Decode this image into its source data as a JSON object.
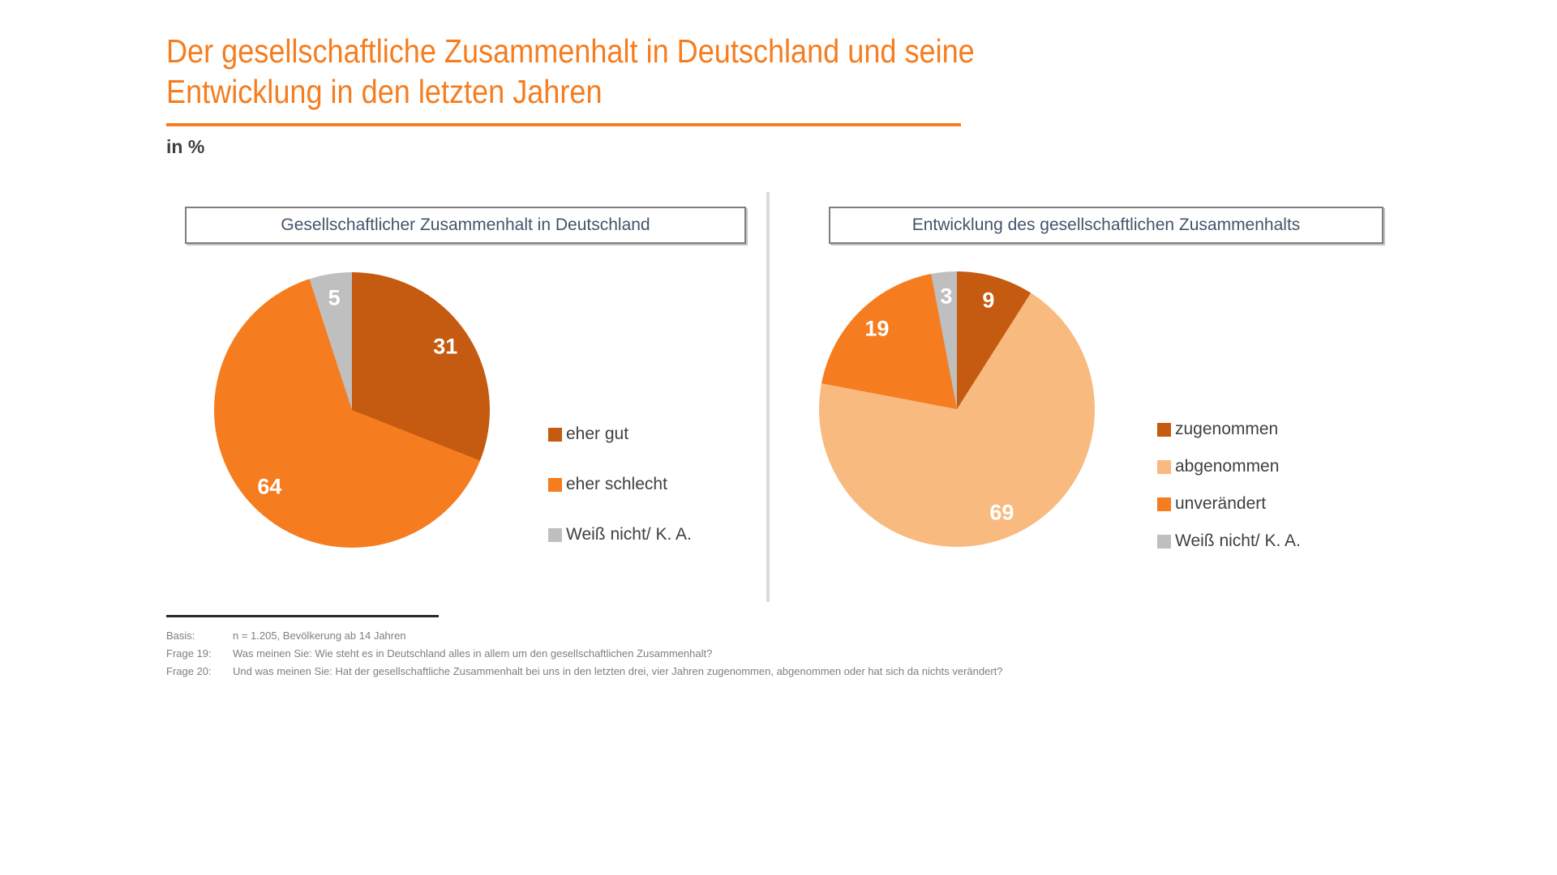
{
  "accent_color": "#F57D1F",
  "title": {
    "line1": "Der gesellschaftliche Zusammenhalt in Deutschland und seine",
    "line2": "Entwicklung in den letzten Jahren"
  },
  "unit_label": "in %",
  "chart_data": [
    {
      "type": "pie",
      "title": "Gesellschaftlicher Zusammenhalt in Deutschland",
      "labels": [
        "eher gut",
        "eher schlecht",
        "Weiß nicht/ K. A."
      ],
      "values": [
        31,
        64,
        5
      ],
      "colors": [
        "#C55A11",
        "#F57D1F",
        "#BFBFBF"
      ],
      "unit": "%",
      "start_angle_deg": 0,
      "direction": "clockwise",
      "legend_position": "right"
    },
    {
      "type": "pie",
      "title": "Entwicklung des gesellschaftlichen Zusammenhalts",
      "labels": [
        "zugenommen",
        "abgenommen",
        "unverändert",
        "Weiß nicht/ K. A."
      ],
      "values": [
        9,
        69,
        19,
        3
      ],
      "colors": [
        "#C55A11",
        "#F9BA7F",
        "#F57D1F",
        "#BFBFBF"
      ],
      "unit": "%",
      "start_angle_deg": 0,
      "direction": "clockwise",
      "legend_position": "right"
    }
  ],
  "footer": {
    "rows": [
      {
        "label": "Basis:",
        "text": "n = 1.205, Bevölkerung ab 14 Jahren"
      },
      {
        "label": "Frage 19:",
        "text": "Was meinen Sie: Wie steht es in Deutschland alles in allem um den gesellschaftlichen Zusammenhalt?"
      },
      {
        "label": "Frage 20:",
        "text": "Und was meinen Sie: Hat der gesellschaftliche Zusammenhalt bei uns in den letzten drei, vier Jahren zugenommen, abgenommen oder hat sich da nichts verändert?"
      }
    ]
  }
}
